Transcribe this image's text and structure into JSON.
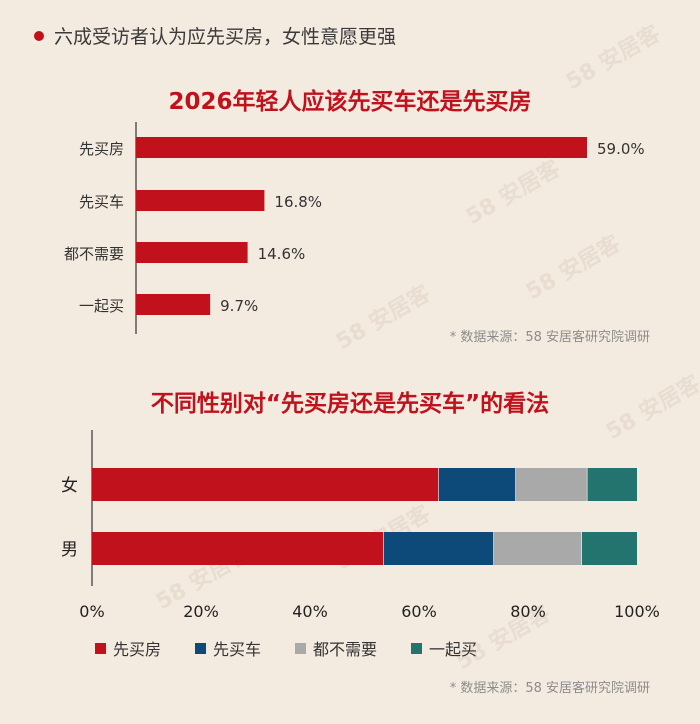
{
  "headline": "六成受访者认为应先买房，女性意愿更强",
  "watermark": "58 安居客",
  "colors": {
    "red": "#c0111d",
    "blue": "#0d4a7a",
    "gray": "#a9a9a9",
    "teal": "#23736e"
  },
  "chart_data": [
    {
      "type": "bar",
      "orientation": "horizontal",
      "title": "2026年轻人应该先买车还是先买房",
      "categories": [
        "先买房",
        "先买车",
        "都不需要",
        "一起买"
      ],
      "values": [
        59.0,
        16.8,
        14.6,
        9.7
      ],
      "value_labels": [
        "59.0%",
        "16.8%",
        "14.6%",
        "9.7%"
      ],
      "source": "* 数据来源：58 安居客研究院调研"
    },
    {
      "type": "bar",
      "orientation": "horizontal",
      "stacked": true,
      "title": "不同性别对“先买房还是先买车”的看法",
      "categories": [
        "女",
        "男"
      ],
      "series": [
        {
          "name": "先买房",
          "values": [
            63,
            53
          ]
        },
        {
          "name": "先买车",
          "values": [
            14,
            20
          ]
        },
        {
          "name": "都不需要",
          "values": [
            13,
            16
          ]
        },
        {
          "name": "一起买",
          "values": [
            9,
            10
          ]
        }
      ],
      "xlim": [
        0,
        100
      ],
      "x_tick_labels": [
        "0%",
        "20%",
        "40%",
        "60%",
        "80%",
        "100%"
      ],
      "legend_position": "bottom",
      "source": "* 数据来源：58 安居客研究院调研"
    }
  ]
}
